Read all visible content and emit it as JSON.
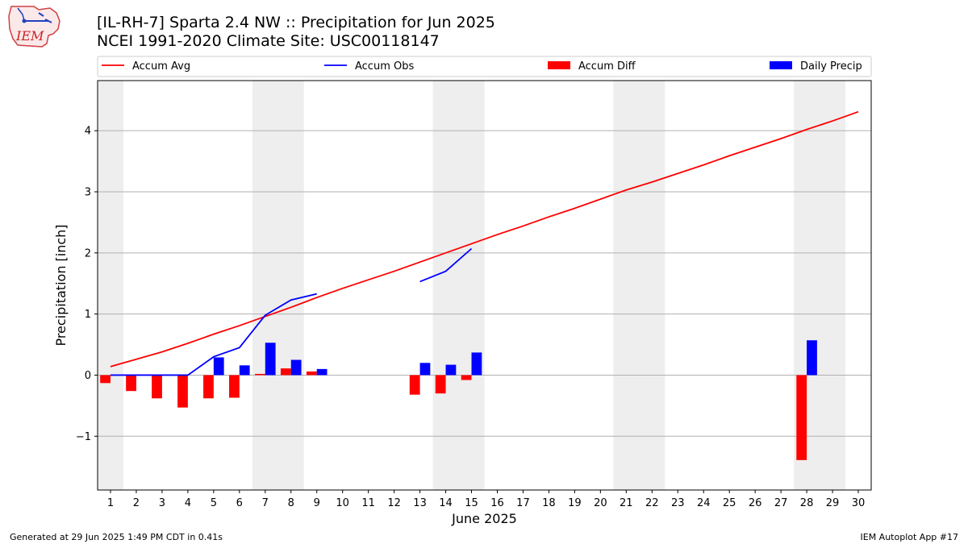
{
  "header": {
    "title_line1": "[IL-RH-7] Sparta 2.4 NW :: Precipitation for Jun 2025",
    "title_line2": "NCEI 1991-2020 Climate Site: USC00118147"
  },
  "logo": {
    "text": "IEM",
    "icon": "iem-logo-icon"
  },
  "footer": {
    "generated": "Generated at 29 Jun 2025 1:49 PM CDT in 0.41s",
    "app": "IEM Autoplot App #17"
  },
  "colors": {
    "avg": "#ff0000",
    "obs": "#0000ff",
    "diff": "#ff0000",
    "daily": "#0000ff",
    "weekend_shade": "#eeeeee",
    "grid": "#b0b0b0"
  },
  "chart_data": {
    "type": "bar",
    "xlabel": "June 2025",
    "ylabel": "Precipitation [inch]",
    "xlim": [
      0.5,
      30.5
    ],
    "ylim": [
      -1.88,
      4.82
    ],
    "yticks": [
      -1,
      0,
      1,
      2,
      3,
      4
    ],
    "ytick_labels": [
      "−1",
      "0",
      "1",
      "2",
      "3",
      "4"
    ],
    "xticks": [
      1,
      2,
      3,
      4,
      5,
      6,
      7,
      8,
      9,
      10,
      11,
      12,
      13,
      14,
      15,
      16,
      17,
      18,
      19,
      20,
      21,
      22,
      23,
      24,
      25,
      26,
      27,
      28,
      29,
      30
    ],
    "grid": "horizontal",
    "legend_position": "top",
    "shaded_days": [
      [
        1,
        1
      ],
      [
        7,
        8
      ],
      [
        14,
        15
      ],
      [
        21,
        22
      ],
      [
        28,
        29
      ]
    ],
    "series": [
      {
        "name": "Accum Avg",
        "kind": "line",
        "x": [
          1,
          2,
          3,
          4,
          5,
          6,
          7,
          8,
          9,
          10,
          11,
          12,
          13,
          14,
          15,
          16,
          17,
          18,
          19,
          20,
          21,
          22,
          23,
          24,
          25,
          26,
          27,
          28,
          29,
          30
        ],
        "values": [
          0.14,
          0.26,
          0.38,
          0.52,
          0.67,
          0.81,
          0.96,
          1.11,
          1.27,
          1.42,
          1.56,
          1.7,
          1.85,
          2.0,
          2.15,
          2.3,
          2.44,
          2.59,
          2.73,
          2.88,
          3.03,
          3.16,
          3.3,
          3.44,
          3.59,
          3.73,
          3.87,
          4.02,
          4.16,
          4.31
        ]
      },
      {
        "name": "Accum Obs",
        "kind": "line",
        "x": [
          1,
          2,
          3,
          4,
          5,
          6,
          7,
          8,
          9,
          10,
          11,
          12,
          13,
          14,
          15
        ],
        "values": [
          0,
          0,
          0,
          0,
          0.3,
          0.45,
          0.98,
          1.23,
          1.33,
          null,
          null,
          null,
          1.53,
          1.7,
          2.07
        ]
      },
      {
        "name": "Accum Diff",
        "kind": "bar",
        "x": [
          1,
          2,
          3,
          4,
          5,
          6,
          7,
          8,
          9,
          13,
          14,
          15,
          28
        ],
        "values": [
          -0.13,
          -0.26,
          -0.38,
          -0.53,
          -0.38,
          -0.37,
          0.02,
          0.11,
          0.06,
          -0.32,
          -0.3,
          -0.08,
          -1.39
        ]
      },
      {
        "name": "Daily Precip",
        "kind": "bar",
        "x": [
          5,
          6,
          7,
          8,
          9,
          13,
          14,
          15,
          28
        ],
        "values": [
          0.29,
          0.16,
          0.53,
          0.25,
          0.1,
          0.2,
          0.17,
          0.37,
          0.57
        ]
      }
    ]
  }
}
